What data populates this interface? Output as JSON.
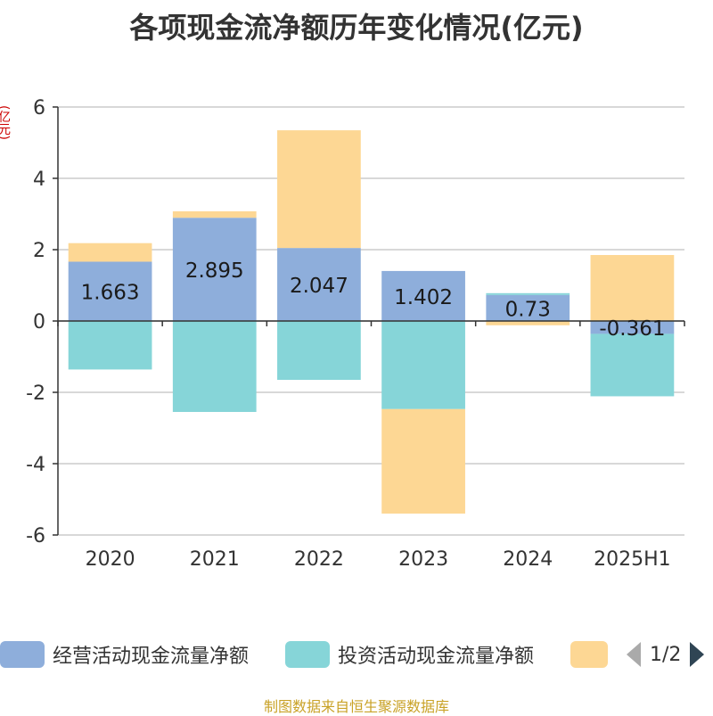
{
  "title": "各项现金流净额历年变化情况(亿元)",
  "unit_label": "(亿元)",
  "source_note": "制图数据来自恒生聚源数据库",
  "legend": {
    "items": [
      {
        "label": "经营活动现金流量净额",
        "color": "#8eaedb"
      },
      {
        "label": "投资活动现金流量净额",
        "color": "#86d5d8"
      },
      {
        "label": "",
        "color": "#fdd794"
      }
    ],
    "page_text": "1/2",
    "prev_icon": "triangle-left-icon",
    "next_icon": "triangle-right-icon"
  },
  "chart_data": {
    "type": "bar",
    "stacked": true,
    "categories": [
      "2020",
      "2021",
      "2022",
      "2023",
      "2024",
      "2025H1"
    ],
    "ylim": [
      -6,
      6
    ],
    "yticks": [
      6,
      4,
      2,
      0,
      -2,
      -4,
      -6
    ],
    "grid": true,
    "legend_position": "bottom",
    "series": [
      {
        "name": "经营活动现金流量净额",
        "color": "#8eaedb",
        "values": [
          1.663,
          2.895,
          2.047,
          1.402,
          0.73,
          -0.361
        ],
        "labels": [
          "1.663",
          "2.895",
          "2.047",
          "1.402",
          "0.73",
          "-0.361"
        ]
      },
      {
        "name": "投资活动现金流量净额",
        "color": "#86d5d8",
        "values": [
          -1.36,
          -2.55,
          -1.65,
          -2.47,
          0.05,
          -1.75
        ]
      },
      {
        "name": "",
        "color": "#fdd794",
        "values": [
          0.52,
          0.18,
          3.3,
          -2.93,
          -0.12,
          1.85
        ]
      }
    ]
  }
}
